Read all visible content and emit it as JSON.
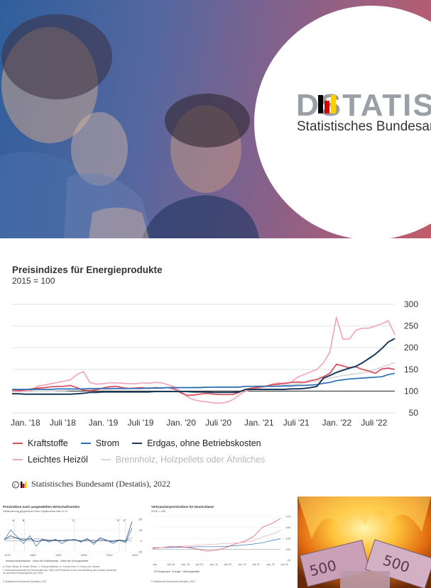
{
  "hero": {
    "logo_word": "DSTATIS",
    "logo_sub": "Statistisches Bundesamt"
  },
  "chart": {
    "title": "Preisindizes für Energieprodukte",
    "subtitle": "2015 = 100",
    "credit": "Statistisches Bundesamt (Destatis), 2022"
  },
  "chart_data": [
    {
      "type": "line",
      "title": "Preisindizes für Energieprodukte",
      "subtitle": "2015 = 100",
      "x_tick_labels": [
        "Jan. '18",
        "Juli '18",
        "Jan. '19",
        "Juli '19",
        "Jan. '20",
        "Juli '20",
        "Jan. '21",
        "Juli '21",
        "Jan. '22",
        "Juli '22"
      ],
      "x_ticks_months": [
        0,
        6,
        12,
        18,
        24,
        30,
        36,
        42,
        48,
        54
      ],
      "x": [
        0,
        1,
        2,
        3,
        4,
        5,
        6,
        7,
        8,
        9,
        10,
        11,
        12,
        13,
        14,
        15,
        16,
        17,
        18,
        19,
        20,
        21,
        22,
        23,
        24,
        25,
        26,
        27,
        28,
        29,
        30,
        31,
        32,
        33,
        34,
        35,
        36,
        37,
        38,
        39,
        40,
        41,
        42,
        43,
        44,
        45,
        46,
        47,
        48,
        49,
        50,
        51,
        52,
        53,
        54,
        55,
        56,
        57,
        58,
        59
      ],
      "ylim": [
        50,
        300
      ],
      "yticks": [
        50,
        100,
        150,
        200,
        250,
        300
      ],
      "reference_line": 100,
      "legend_position": "bottom",
      "grid": "horizontal",
      "series": [
        {
          "name": "Kraftstoffe",
          "color": "#d94a5a",
          "values": [
            103,
            101,
            103,
            105,
            107,
            108,
            110,
            111,
            111,
            113,
            108,
            102,
            101,
            103,
            107,
            110,
            111,
            108,
            106,
            107,
            108,
            106,
            108,
            107,
            108,
            105,
            96,
            90,
            91,
            93,
            95,
            93,
            92,
            92,
            92,
            97,
            104,
            107,
            109,
            111,
            114,
            116,
            118,
            120,
            121,
            120,
            124,
            127,
            133,
            141,
            162,
            158,
            154,
            156,
            150,
            146,
            141,
            151,
            153,
            150
          ]
        },
        {
          "name": "Strom",
          "color": "#2a6fb3",
          "values": [
            104,
            104,
            104,
            104,
            104,
            104,
            104,
            105,
            105,
            105,
            105,
            105,
            106,
            106,
            106,
            106,
            106,
            106,
            106,
            106,
            106,
            107,
            107,
            107,
            108,
            108,
            108,
            108,
            108,
            108,
            109,
            109,
            109,
            109,
            109,
            109,
            111,
            111,
            111,
            111,
            111,
            111,
            112,
            112,
            113,
            113,
            114,
            115,
            118,
            120,
            124,
            126,
            128,
            129,
            130,
            131,
            132,
            133,
            138,
            141
          ]
        },
        {
          "name": "Erdgas, ohne Betriebskosten",
          "color": "#1a3a5c",
          "values": [
            94,
            94,
            93,
            93,
            93,
            93,
            93,
            93,
            93,
            93,
            94,
            95,
            97,
            97,
            98,
            98,
            98,
            98,
            98,
            98,
            98,
            98,
            99,
            99,
            99,
            99,
            99,
            99,
            98,
            98,
            98,
            97,
            97,
            97,
            97,
            98,
            104,
            104,
            104,
            104,
            104,
            104,
            104,
            105,
            105,
            106,
            108,
            111,
            130,
            136,
            143,
            148,
            153,
            157,
            165,
            175,
            185,
            198,
            213,
            221
          ]
        },
        {
          "name": "Leichtes Heizöl",
          "color": "#f0a8b8",
          "values": [
            99,
            100,
            100,
            103,
            112,
            114,
            117,
            120,
            123,
            126,
            138,
            145,
            120,
            116,
            117,
            119,
            119,
            118,
            117,
            117,
            119,
            118,
            120,
            119,
            115,
            110,
            100,
            87,
            80,
            77,
            75,
            73,
            72,
            74,
            80,
            91,
            100,
            104,
            107,
            110,
            116,
            119,
            117,
            120,
            132,
            138,
            144,
            150,
            165,
            190,
            270,
            220,
            220,
            240,
            245,
            245,
            250,
            255,
            262,
            230
          ]
        },
        {
          "name": "Brennholz, Holzpellets oder Ähnliches",
          "color": "#d8d8d8",
          "values": [
            99,
            99,
            99,
            99,
            100,
            100,
            100,
            101,
            101,
            102,
            102,
            103,
            103,
            104,
            104,
            104,
            105,
            105,
            105,
            106,
            106,
            106,
            107,
            107,
            108,
            108,
            108,
            108,
            109,
            109,
            109,
            109,
            110,
            110,
            110,
            110,
            111,
            111,
            112,
            112,
            113,
            113,
            114,
            115,
            117,
            119,
            121,
            123,
            127,
            130,
            133,
            136,
            138,
            140,
            142,
            145,
            150,
            155,
            160,
            166
          ]
        }
      ]
    },
    {
      "type": "line",
      "title": "Preisindizes nach ausgewählten Wirtschaftsstufen",
      "subtitle": "Veränderung gegenüber dem Vorjahresmonat, in %",
      "x_tick_labels": [
        "1970",
        "1980",
        "1990",
        "2000",
        "2010",
        "2020"
      ],
      "yticks": [
        -25,
        0,
        25,
        50
      ],
      "series": [
        {
          "name": "Verbraucherpreisindex",
          "color": "#7f96b2",
          "values": [
            4,
            6,
            7,
            5,
            3,
            5,
            4,
            2,
            1,
            2,
            3,
            2,
            1,
            1,
            2,
            1,
            0,
            1,
            2,
            1,
            8
          ]
        },
        {
          "name": "Index der Einfuhrpreise",
          "color": "#2a6fb3",
          "values": [
            2,
            25,
            10,
            -6,
            12,
            -12,
            5,
            -3,
            4,
            -6,
            2,
            4,
            -3,
            6,
            -8,
            8,
            2,
            -6,
            2,
            -4,
            30
          ]
        },
        {
          "name": "Index der Erzeugerpreise",
          "color": "#1a3a5c",
          "values": [
            3,
            12,
            6,
            2,
            6,
            -2,
            2,
            1,
            2,
            0,
            2,
            3,
            -1,
            4,
            -4,
            5,
            1,
            -2,
            2,
            -1,
            45
          ]
        }
      ],
      "annotations": [
        "A",
        "B",
        "C",
        "D",
        "E"
      ],
      "legend_text": [
        "Verbraucherpreisindex",
        "Index der Einfuhrpreise",
        "Index der Erzeugerpreise"
      ],
      "notes": [
        "A: Erste Ölkrise; B: Zweite Ölkrise; C: Finanzmarktkrise; D: Corona-Krise; E: Krieg in der Ukraine",
        "1 Verbraucherpreisindex für Deutschland (ab 1962) und Preisindex für die Lebenshaltung aller privaten Haushalte",
        "für das frühere Bundesgebiet (bis 1991)"
      ],
      "credit": "© Statistisches Bundesamt (Destatis), 2022"
    },
    {
      "type": "line",
      "title": "Verbraucherpreisindizes für Deutschland",
      "subtitle": "2015 = 100",
      "x_tick_labels": [
        "Jan.",
        "Juli '18",
        "Jan. '19",
        "Juli '19",
        "Jan. '20",
        "Juli '20",
        "Jan. '21",
        "Juli '21",
        "Jan. '22",
        "Juli '22"
      ],
      "yticks": [
        75,
        100,
        125,
        150,
        175
      ],
      "series": [
        {
          "name": "VPI insgesamt",
          "color": "#2a6fb3",
          "values": [
            103,
            104,
            104,
            105,
            105,
            106,
            106,
            106,
            107,
            108,
            110,
            112,
            115,
            120,
            124
          ]
        },
        {
          "name": "Energie",
          "color": "#d94a5a",
          "values": [
            102,
            104,
            107,
            106,
            104,
            100,
            96,
            98,
            104,
            112,
            118,
            128,
            150,
            158,
            170
          ]
        },
        {
          "name": "Nahrungsmittel",
          "color": "#f0a8b8",
          "values": [
            104,
            104,
            106,
            107,
            108,
            110,
            111,
            112,
            113,
            114,
            116,
            120,
            128,
            134,
            142
          ]
        }
      ],
      "credit": "© Statistisches Bundesamt (Destatis), 2022"
    }
  ]
}
